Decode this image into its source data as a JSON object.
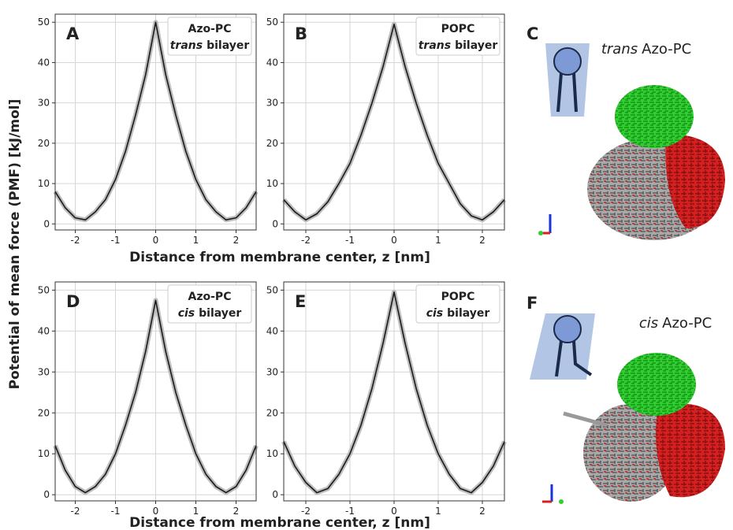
{
  "figure": {
    "ylabel": "Potential of mean force (PMF) [kJ/mol]",
    "xlabels": [
      "Distance from membrane center, z [nm]",
      "Distance from membrane center, z [nm]"
    ]
  },
  "structures": [
    {
      "panel": "C",
      "italic": "trans",
      "name": "Azo-PC"
    },
    {
      "panel": "F",
      "italic": "cis",
      "name": "Azo-PC"
    }
  ],
  "chart_data": [
    {
      "type": "line",
      "panel": "A",
      "annotation": {
        "line1": "Azo-PC",
        "italic": "trans",
        "rest": "bilayer"
      },
      "x": [
        -2.5,
        -2.25,
        -2,
        -1.75,
        -1.5,
        -1.25,
        -1,
        -0.75,
        -0.5,
        -0.25,
        0,
        0.25,
        0.5,
        0.75,
        1,
        1.25,
        1.5,
        1.75,
        2,
        2.25,
        2.5
      ],
      "series": [
        {
          "color": "#1a1a1a",
          "band_color": "#bdbdbd",
          "values": [
            8,
            4,
            1.5,
            1,
            3,
            6,
            11,
            18,
            27,
            37,
            50,
            37,
            27,
            18,
            11,
            6,
            3,
            1,
            1.5,
            4,
            8
          ]
        }
      ],
      "xlim": [
        -2.5,
        2.5
      ],
      "ylim": [
        -1.5,
        52
      ],
      "xticks": [
        -2,
        -1,
        0,
        1,
        2
      ],
      "yticks": [
        0,
        10,
        20,
        30,
        40,
        50
      ],
      "grid": true
    },
    {
      "type": "line",
      "panel": "B",
      "annotation": {
        "line1": "POPC",
        "italic": "trans",
        "rest": "bilayer"
      },
      "x": [
        -2.5,
        -2.25,
        -2,
        -1.75,
        -1.5,
        -1.25,
        -1,
        -0.75,
        -0.5,
        -0.25,
        0,
        0.25,
        0.5,
        0.75,
        1,
        1.25,
        1.5,
        1.75,
        2,
        2.25,
        2.5
      ],
      "series": [
        {
          "color": "#1a1a1a",
          "band_color": "#bdbdbd",
          "values": [
            6,
            3,
            1,
            2.5,
            5.5,
            10,
            15,
            22,
            30,
            39,
            49.5,
            39,
            30,
            22,
            15,
            10,
            5,
            2,
            1,
            3,
            6
          ]
        }
      ],
      "xlim": [
        -2.5,
        2.5
      ],
      "ylim": [
        -1.5,
        52
      ],
      "xticks": [
        -2,
        -1,
        0,
        1,
        2
      ],
      "yticks": [
        0,
        10,
        20,
        30,
        40,
        50
      ],
      "grid": true
    },
    {
      "type": "line",
      "panel": "D",
      "annotation": {
        "line1": "Azo-PC",
        "italic": "cis",
        "rest": "bilayer"
      },
      "x": [
        -2.5,
        -2.25,
        -2,
        -1.75,
        -1.5,
        -1.25,
        -1,
        -0.75,
        -0.5,
        -0.25,
        0,
        0.25,
        0.5,
        0.75,
        1,
        1.25,
        1.5,
        1.75,
        2,
        2.25,
        2.5
      ],
      "series": [
        {
          "color": "#1a1a1a",
          "band_color": "#bdbdbd",
          "values": [
            12,
            6,
            2,
            0.5,
            2,
            5,
            10,
            17,
            25,
            35,
            47.5,
            35,
            25,
            17,
            10,
            5,
            2,
            0.5,
            2,
            6,
            12
          ]
        }
      ],
      "xlim": [
        -2.5,
        2.5
      ],
      "ylim": [
        -1.5,
        52
      ],
      "xticks": [
        -2,
        -1,
        0,
        1,
        2
      ],
      "yticks": [
        0,
        10,
        20,
        30,
        40,
        50
      ],
      "grid": true
    },
    {
      "type": "line",
      "panel": "E",
      "annotation": {
        "line1": "POPC",
        "italic": "cis",
        "rest": "bilayer"
      },
      "x": [
        -2.5,
        -2.25,
        -2,
        -1.75,
        -1.5,
        -1.25,
        -1,
        -0.75,
        -0.5,
        -0.25,
        0,
        0.25,
        0.5,
        0.75,
        1,
        1.25,
        1.5,
        1.75,
        2,
        2.25,
        2.5
      ],
      "series": [
        {
          "color": "#1a1a1a",
          "band_color": "#bdbdbd",
          "values": [
            13,
            7,
            3,
            0.5,
            1.5,
            5,
            10,
            17,
            26,
            37,
            49.5,
            37,
            26,
            17,
            10,
            5,
            1.5,
            0.5,
            3,
            7,
            13
          ]
        }
      ],
      "xlim": [
        -2.5,
        2.5
      ],
      "ylim": [
        -1.5,
        52
      ],
      "xticks": [
        -2,
        -1,
        0,
        1,
        2
      ],
      "yticks": [
        0,
        10,
        20,
        30,
        40,
        50
      ],
      "grid": true
    }
  ]
}
